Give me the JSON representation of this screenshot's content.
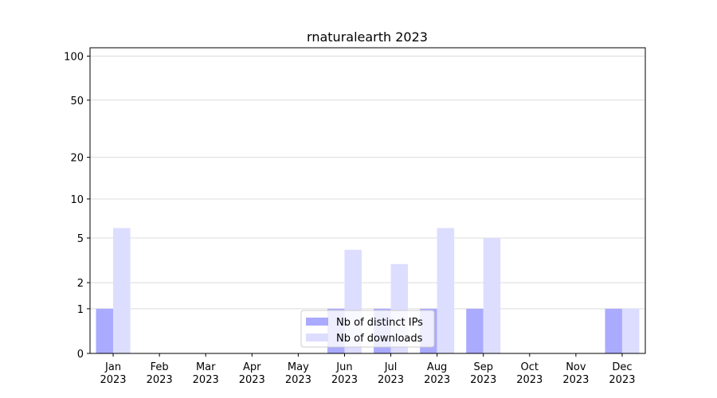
{
  "chart_data": {
    "type": "bar",
    "title": "rnaturalearth 2023",
    "categories": [
      "Jan\n2023",
      "Feb\n2023",
      "Mar\n2023",
      "Apr\n2023",
      "May\n2023",
      "Jun\n2023",
      "Jul\n2023",
      "Aug\n2023",
      "Sep\n2023",
      "Oct\n2023",
      "Nov\n2023",
      "Dec\n2023"
    ],
    "series": [
      {
        "name": "Nb of distinct IPs",
        "color": "#aaaaff",
        "values": [
          1,
          0,
          0,
          0,
          0,
          1,
          1,
          1,
          1,
          0,
          0,
          1
        ]
      },
      {
        "name": "Nb of downloads",
        "color": "#ddddff",
        "values": [
          6,
          0,
          0,
          0,
          0,
          4,
          3,
          6,
          5,
          0,
          0,
          1
        ]
      }
    ],
    "yscale": "log1p",
    "ylim": [
      0,
      114
    ],
    "yticks": [
      0,
      1,
      2,
      5,
      10,
      20,
      50,
      100
    ],
    "grid": true,
    "legend": "lower center"
  }
}
